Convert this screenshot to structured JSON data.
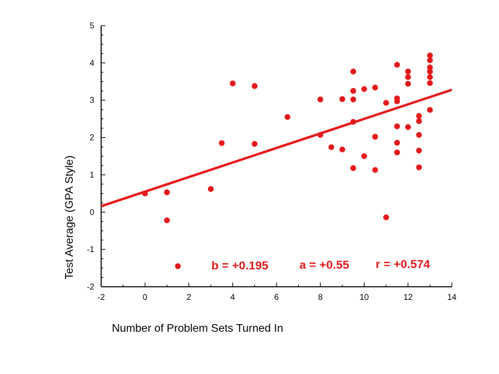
{
  "chart_data": {
    "type": "scatter",
    "title": "",
    "xlabel": "Number of Problem Sets Turned In",
    "ylabel": "Test Average (GPA Style)",
    "xlim": [
      -2,
      14
    ],
    "ylim": [
      -2,
      5
    ],
    "x_ticks": [
      -2,
      0,
      2,
      4,
      6,
      8,
      10,
      12,
      14
    ],
    "y_ticks": [
      5,
      4,
      3,
      2,
      1,
      0,
      -1,
      -2
    ],
    "x_tick_labels": [
      "-2",
      "0",
      "2",
      "4",
      "6",
      "8",
      "10",
      "12",
      "14"
    ],
    "y_tick_labels": [
      "5",
      "4",
      "3",
      "2",
      "1",
      "0",
      "-1",
      "-2"
    ],
    "grid": false,
    "point_color": "#e31a1c",
    "line_color": "#e31a1c",
    "points": [
      {
        "x": 0,
        "y": 0.5
      },
      {
        "x": 1,
        "y": 0.53
      },
      {
        "x": 1,
        "y": -0.22
      },
      {
        "x": 1.5,
        "y": -1.45
      },
      {
        "x": 3,
        "y": 0.62
      },
      {
        "x": 3.5,
        "y": 1.85
      },
      {
        "x": 4,
        "y": 3.45
      },
      {
        "x": 5,
        "y": 3.38
      },
      {
        "x": 5,
        "y": 1.83
      },
      {
        "x": 6.5,
        "y": 2.55
      },
      {
        "x": 8,
        "y": 3.02
      },
      {
        "x": 8,
        "y": 2.07
      },
      {
        "x": 8.5,
        "y": 1.74
      },
      {
        "x": 9,
        "y": 3.03
      },
      {
        "x": 9,
        "y": 1.68
      },
      {
        "x": 9.5,
        "y": 3.77
      },
      {
        "x": 9.5,
        "y": 3.25
      },
      {
        "x": 9.5,
        "y": 3.02
      },
      {
        "x": 9.5,
        "y": 2.42
      },
      {
        "x": 9.5,
        "y": 1.18
      },
      {
        "x": 10,
        "y": 3.3
      },
      {
        "x": 10,
        "y": 1.5
      },
      {
        "x": 10.5,
        "y": 3.34
      },
      {
        "x": 10.5,
        "y": 2.02
      },
      {
        "x": 10.5,
        "y": 1.13
      },
      {
        "x": 11,
        "y": 2.93
      },
      {
        "x": 11,
        "y": -0.14
      },
      {
        "x": 11.5,
        "y": 3.95
      },
      {
        "x": 11.5,
        "y": 3.05
      },
      {
        "x": 11.5,
        "y": 2.97
      },
      {
        "x": 11.5,
        "y": 2.3
      },
      {
        "x": 11.5,
        "y": 1.86
      },
      {
        "x": 11.5,
        "y": 1.6
      },
      {
        "x": 12,
        "y": 3.77
      },
      {
        "x": 12,
        "y": 3.62
      },
      {
        "x": 12,
        "y": 3.44
      },
      {
        "x": 12,
        "y": 2.28
      },
      {
        "x": 12.5,
        "y": 2.58
      },
      {
        "x": 12.5,
        "y": 2.44
      },
      {
        "x": 12.5,
        "y": 2.07
      },
      {
        "x": 12.5,
        "y": 1.65
      },
      {
        "x": 12.5,
        "y": 1.2
      },
      {
        "x": 13,
        "y": 4.2
      },
      {
        "x": 13,
        "y": 4.07
      },
      {
        "x": 13,
        "y": 3.88
      },
      {
        "x": 13,
        "y": 3.77
      },
      {
        "x": 13,
        "y": 3.62
      },
      {
        "x": 13,
        "y": 3.46
      },
      {
        "x": 13,
        "y": 2.74
      }
    ],
    "regression": {
      "slope": 0.195,
      "intercept": 0.55,
      "r": 0.574
    },
    "annotations": {
      "b": "b = +0.195",
      "a": "a = +0.55",
      "r": "r = +0.574"
    }
  }
}
